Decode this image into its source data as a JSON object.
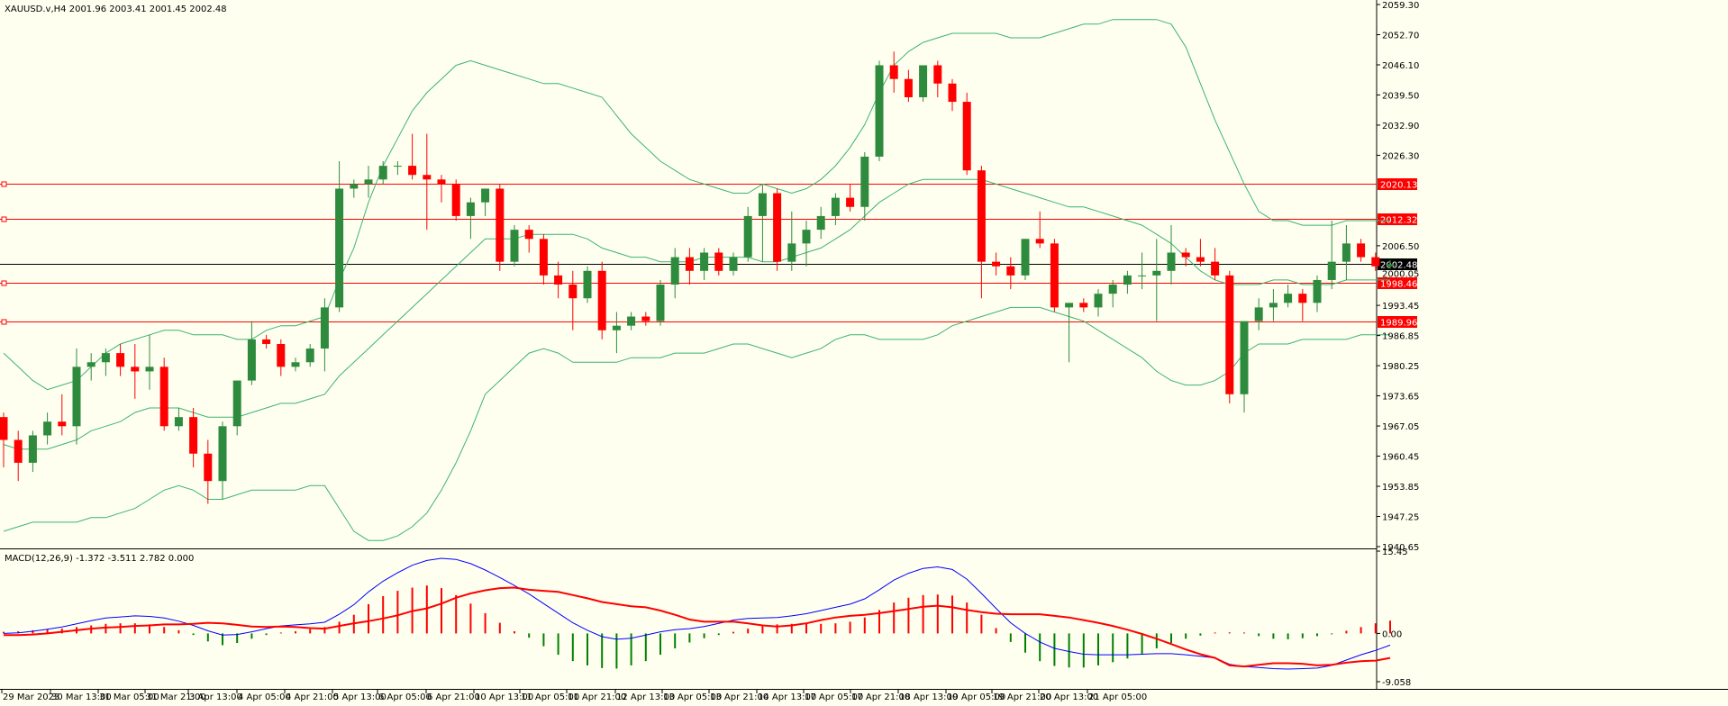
{
  "window": {
    "symbol_info": "XAUUSD.v,H4  2001.96 2003.41 2001.45 2002.48",
    "macd_info": "MACD(12,26,9) -1.372 -3.511 2.782 0.000"
  },
  "colors": {
    "background": "#fffff0",
    "bull": "#2e8b3e",
    "bear": "#ff0000",
    "bands": "#3cb371",
    "level_line": "#ff0000",
    "price_line": "#000000",
    "macd_line": "#0000ff",
    "signal_line": "#ff0000",
    "hist_pos": "#ff0000",
    "hist_neg": "#008000"
  },
  "chart_data": [
    {
      "type": "candlestick",
      "title": "XAUUSD.v,H4  2001.96 2003.41 2001.45 2002.48",
      "ylim": [
        1940.65,
        2059.3
      ],
      "y_ticks": [
        "2059.30",
        "2052.70",
        "2046.10",
        "2039.50",
        "2032.90",
        "2026.30",
        "2006.50",
        "1993.45",
        "1986.85",
        "1980.25",
        "1973.65",
        "1967.05",
        "1960.45",
        "1953.85",
        "1947.25",
        "1940.65"
      ],
      "x_ticks": [
        "29 Mar 2023",
        "30 Mar 13:00",
        "31 Mar 05:00",
        "31 Mar 21:00",
        "3 Apr 13:00",
        "4 Apr 05:00",
        "4 Apr 21:00",
        "5 Apr 13:00",
        "6 Apr 05:00",
        "6 Apr 21:00",
        "10 Apr 13:00",
        "11 Apr 05:00",
        "11 Apr 21:00",
        "12 Apr 13:00",
        "13 Apr 05:00",
        "13 Apr 21:00",
        "14 Apr 13:00",
        "17 Apr 05:00",
        "17 Apr 21:00",
        "18 Apr 13:00",
        "19 Apr 05:00",
        "19 Apr 21:00",
        "20 Apr 13:00",
        "21 Apr 05:00"
      ],
      "levels": [
        {
          "label": "2020.13",
          "value": 2020.13
        },
        {
          "label": "2012.32",
          "value": 2012.32
        },
        {
          "label": "1998.46",
          "value": 1998.46
        },
        {
          "label": "1989.96",
          "value": 1989.96
        }
      ],
      "current_price": {
        "label": "2002.48",
        "value": 2002.48
      },
      "extra_label": "2000.05",
      "candles": [
        [
          1969.0,
          1970.0,
          1958.0,
          1964.0
        ],
        [
          1964.0,
          1966.0,
          1955.0,
          1959.0
        ],
        [
          1959.0,
          1966.0,
          1957.0,
          1965.0
        ],
        [
          1965.0,
          1970.0,
          1963.0,
          1968.0
        ],
        [
          1968.0,
          1974.0,
          1965.0,
          1967.0
        ],
        [
          1967.0,
          1984.0,
          1963.0,
          1980.0
        ],
        [
          1980.0,
          1983.0,
          1977.0,
          1981.0
        ],
        [
          1981.0,
          1984.0,
          1978.0,
          1983.0
        ],
        [
          1983.0,
          1985.0,
          1978.0,
          1980.0
        ],
        [
          1980.0,
          1985.0,
          1973.0,
          1979.0
        ],
        [
          1979.0,
          1987.0,
          1975.0,
          1980.0
        ],
        [
          1980.0,
          1982.0,
          1966.0,
          1967.0
        ],
        [
          1967.0,
          1971.0,
          1966.0,
          1969.0
        ],
        [
          1969.0,
          1971.0,
          1958.0,
          1961.0
        ],
        [
          1961.0,
          1964.0,
          1950.0,
          1955.0
        ],
        [
          1955.0,
          1968.0,
          1951.0,
          1967.0
        ],
        [
          1967.0,
          1977.0,
          1965.0,
          1977.0
        ],
        [
          1977.0,
          1990.0,
          1976.0,
          1986.0
        ],
        [
          1986.0,
          1987.0,
          1984.0,
          1985.0
        ],
        [
          1985.0,
          1986.0,
          1978.0,
          1980.0
        ],
        [
          1980.0,
          1982.0,
          1979.0,
          1981.0
        ],
        [
          1981.0,
          1985.0,
          1980.0,
          1984.0
        ],
        [
          1984.0,
          1995.0,
          1979.0,
          1993.0
        ],
        [
          1993.0,
          2025.0,
          1992.0,
          2019.0
        ],
        [
          2019.0,
          2021.0,
          2017.0,
          2020.0
        ],
        [
          2020.0,
          2024.0,
          2017.0,
          2021.0
        ],
        [
          2021.0,
          2025.0,
          2020.0,
          2024.0
        ],
        [
          2024.0,
          2025.0,
          2022.0,
          2024.0
        ],
        [
          2024.0,
          2031.0,
          2021.0,
          2022.0
        ],
        [
          2022.0,
          2031.0,
          2010.0,
          2021.0
        ],
        [
          2021.0,
          2022.0,
          2016.0,
          2020.0
        ],
        [
          2020.0,
          2021.0,
          2012.0,
          2013.0
        ],
        [
          2013.0,
          2017.0,
          2008.0,
          2016.0
        ],
        [
          2016.0,
          2019.0,
          2013.0,
          2019.0
        ],
        [
          2019.0,
          2020.0,
          2001.0,
          2003.0
        ],
        [
          2003.0,
          2011.0,
          2002.0,
          2010.0
        ],
        [
          2010.0,
          2011.0,
          2005.0,
          2008.0
        ],
        [
          2008.0,
          2009.0,
          1998.0,
          2000.0
        ],
        [
          2000.0,
          2003.0,
          1995.0,
          1998.0
        ],
        [
          1998.0,
          2001.0,
          1988.0,
          1995.0
        ],
        [
          1995.0,
          2002.0,
          1994.0,
          2001.0
        ],
        [
          2001.0,
          2003.0,
          1986.0,
          1988.0
        ],
        [
          1988.0,
          1992.0,
          1983.0,
          1989.0
        ],
        [
          1989.0,
          1992.0,
          1988.0,
          1991.0
        ],
        [
          1991.0,
          1992.0,
          1989.0,
          1990.0
        ],
        [
          1990.0,
          1999.0,
          1989.0,
          1998.0
        ],
        [
          1998.0,
          2006.0,
          1995.0,
          2004.0
        ],
        [
          2004.0,
          2006.0,
          1998.0,
          2001.0
        ],
        [
          2001.0,
          2006.0,
          1999.0,
          2005.0
        ],
        [
          2005.0,
          2006.0,
          2000.0,
          2001.0
        ],
        [
          2001.0,
          2005.0,
          2000.0,
          2004.0
        ],
        [
          2004.0,
          2015.0,
          2003.0,
          2013.0
        ],
        [
          2013.0,
          2020.0,
          2003.0,
          2018.0
        ],
        [
          2018.0,
          2019.0,
          2001.0,
          2003.0
        ],
        [
          2003.0,
          2014.0,
          2001.0,
          2007.0
        ],
        [
          2007.0,
          2012.0,
          2002.0,
          2010.0
        ],
        [
          2010.0,
          2015.0,
          2008.0,
          2013.0
        ],
        [
          2013.0,
          2018.0,
          2011.0,
          2017.0
        ],
        [
          2017.0,
          2020.0,
          2014.0,
          2015.0
        ],
        [
          2015.0,
          2027.0,
          2012.0,
          2026.0
        ],
        [
          2026.0,
          2047.0,
          2025.0,
          2046.0
        ],
        [
          2046.0,
          2049.0,
          2040.0,
          2043.0
        ],
        [
          2043.0,
          2045.0,
          2038.0,
          2039.0
        ],
        [
          2039.0,
          2046.0,
          2038.0,
          2046.0
        ],
        [
          2046.0,
          2047.0,
          2039.0,
          2042.0
        ],
        [
          2042.0,
          2043.0,
          2036.0,
          2038.0
        ],
        [
          2038.0,
          2040.0,
          2022.0,
          2023.0
        ],
        [
          2023.0,
          2024.0,
          1995.0,
          2003.0
        ],
        [
          2003.0,
          2005.0,
          2000.0,
          2002.0
        ],
        [
          2002.0,
          2004.0,
          1997.0,
          2000.0
        ],
        [
          2000.0,
          2008.0,
          1999.0,
          2008.0
        ],
        [
          2008.0,
          2014.0,
          2006.0,
          2007.0
        ],
        [
          2007.0,
          2008.0,
          1992.0,
          1993.0
        ],
        [
          1993.0,
          1994.0,
          1981.0,
          1994.0
        ],
        [
          1994.0,
          1995.0,
          1992.0,
          1993.0
        ],
        [
          1993.0,
          1997.0,
          1991.0,
          1996.0
        ],
        [
          1996.0,
          1999.0,
          1993.0,
          1998.0
        ],
        [
          1998.0,
          2001.0,
          1996.0,
          2000.0
        ],
        [
          2000.0,
          2005.0,
          1997.0,
          2000.0
        ],
        [
          2000.0,
          2008.0,
          1990.0,
          2001.0
        ],
        [
          2001.0,
          2011.0,
          1998.0,
          2005.0
        ],
        [
          2005.0,
          2006.0,
          2002.0,
          2004.0
        ],
        [
          2004.0,
          2008.0,
          2002.0,
          2003.0
        ],
        [
          2003.0,
          2006.0,
          1999.0,
          2000.0
        ],
        [
          2000.0,
          2001.0,
          1972.0,
          1974.0
        ],
        [
          1974.0,
          1990.0,
          1970.0,
          1990.0
        ],
        [
          1990.0,
          1995.0,
          1988.0,
          1993.0
        ],
        [
          1993.0,
          1997.0,
          1990.0,
          1994.0
        ],
        [
          1994.0,
          1998.0,
          1993.0,
          1996.0
        ],
        [
          1996.0,
          1997.0,
          1990.0,
          1994.0
        ],
        [
          1994.0,
          2000.0,
          1992.0,
          1999.0
        ],
        [
          1999.0,
          2012.0,
          1997.0,
          2003.0
        ],
        [
          2003.0,
          2011.0,
          1999.0,
          2007.0
        ],
        [
          2007.0,
          2008.0,
          2003.0,
          2004.0
        ],
        [
          2004.0,
          2005.0,
          2001.0,
          2002.0
        ],
        [
          2002.0,
          2003.41,
          2001.45,
          2002.48
        ]
      ],
      "bands_upper": [
        1983,
        1980,
        1977,
        1975,
        1976,
        1977,
        1980,
        1983,
        1985,
        1986,
        1987,
        1988,
        1988,
        1987,
        1987,
        1987,
        1986,
        1986,
        1988,
        1989,
        1989,
        1990,
        1991,
        1999,
        2006,
        2016,
        2024,
        2030,
        2036,
        2040,
        2043,
        2046,
        2047,
        2046,
        2045,
        2044,
        2043,
        2042,
        2042,
        2041,
        2040,
        2039,
        2035,
        2031,
        2028,
        2025,
        2023,
        2021,
        2020,
        2019,
        2018,
        2018,
        2020,
        2019,
        2018,
        2019,
        2021,
        2024,
        2028,
        2033,
        2040,
        2046,
        2049,
        2051,
        2052,
        2053,
        2053,
        2053,
        2053,
        2052,
        2052,
        2052,
        2053,
        2054,
        2055,
        2055,
        2056,
        2056,
        2056,
        2056,
        2055,
        2050,
        2042,
        2034,
        2027,
        2020,
        2014,
        2012,
        2012,
        2011,
        2011,
        2011,
        2012,
        2012,
        2012,
        2012
      ],
      "bands_middle": [
        1963,
        1962,
        1962,
        1962,
        1963,
        1964,
        1966,
        1967,
        1968,
        1970,
        1971,
        1971,
        1971,
        1970,
        1969,
        1969,
        1969,
        1970,
        1971,
        1972,
        1972,
        1973,
        1974,
        1978,
        1981,
        1984,
        1987,
        1990,
        1993,
        1996,
        1999,
        2002,
        2005,
        2008,
        2008,
        2008,
        2009,
        2009,
        2009,
        2009,
        2008,
        2006,
        2005,
        2004,
        2004,
        2003,
        2003,
        2003,
        2004,
        2004,
        2004,
        2004,
        2003,
        2003,
        2004,
        2005,
        2006,
        2008,
        2010,
        2013,
        2016,
        2018,
        2020,
        2021,
        2021,
        2021,
        2021,
        2021,
        2020,
        2019,
        2018,
        2017,
        2016,
        2015,
        2015,
        2014,
        2013,
        2012,
        2011,
        2009,
        2007,
        2004,
        2001,
        1999,
        1998,
        1998,
        1998,
        1999,
        1999,
        1998,
        1998,
        1998,
        1999,
        1999,
        1999,
        1999
      ],
      "bands_lower": [
        1944,
        1945,
        1946,
        1946,
        1946,
        1946,
        1947,
        1947,
        1948,
        1949,
        1951,
        1953,
        1954,
        1953,
        1951,
        1951,
        1952,
        1953,
        1953,
        1953,
        1953,
        1954,
        1954,
        1949,
        1944,
        1942,
        1942,
        1943,
        1945,
        1948,
        1953,
        1959,
        1966,
        1974,
        1977,
        1980,
        1983,
        1984,
        1983,
        1981,
        1981,
        1981,
        1981,
        1982,
        1982,
        1982,
        1983,
        1983,
        1983,
        1984,
        1985,
        1985,
        1984,
        1983,
        1982,
        1983,
        1984,
        1986,
        1987,
        1987,
        1986,
        1986,
        1986,
        1986,
        1987,
        1989,
        1990,
        1991,
        1992,
        1993,
        1993,
        1993,
        1992,
        1991,
        1990,
        1988,
        1986,
        1984,
        1982,
        1979,
        1977,
        1976,
        1976,
        1977,
        1979,
        1983,
        1985,
        1985,
        1985,
        1986,
        1986,
        1986,
        1986,
        1987,
        1987,
        1987
      ]
    },
    {
      "type": "macd",
      "title": "MACD(12,26,9) -1.372 -3.511 2.782 0.000",
      "ylim": [
        -9.058,
        15.45
      ],
      "y_ticks": [
        "15.45",
        "0.00",
        "-9.058"
      ],
      "histogram": [
        0.3,
        0.4,
        0.6,
        0.8,
        0.9,
        1.2,
        1.5,
        1.8,
        1.9,
        1.9,
        1.7,
        1.2,
        0.6,
        -0.3,
        -1.5,
        -2.2,
        -1.8,
        -1.0,
        -0.3,
        0.1,
        0.4,
        0.8,
        1.2,
        2.2,
        3.5,
        5.5,
        7.0,
        8.0,
        8.6,
        9.0,
        8.5,
        7.2,
        5.6,
        3.8,
        2.0,
        0.4,
        -0.8,
        -2.4,
        -4.0,
        -5.2,
        -6.0,
        -6.5,
        -6.6,
        -6.0,
        -5.2,
        -4.0,
        -2.8,
        -1.7,
        -0.9,
        -0.3,
        0.3,
        0.9,
        1.4,
        1.7,
        1.8,
        1.8,
        1.8,
        1.9,
        2.2,
        3.0,
        4.4,
        5.8,
        6.7,
        7.2,
        7.3,
        7.1,
        5.8,
        3.5,
        1.0,
        -1.6,
        -3.6,
        -5.2,
        -6.1,
        -6.4,
        -6.4,
        -6.0,
        -5.4,
        -4.7,
        -3.8,
        -2.8,
        -1.8,
        -1.0,
        -0.4,
        0.0,
        0.2,
        0.0,
        -0.5,
        -1.0,
        -1.1,
        -0.9,
        -0.5,
        -0.1,
        0.5,
        1.2,
        1.9,
        2.4
      ],
      "macd": [
        0.0,
        0.1,
        0.4,
        0.8,
        1.2,
        1.8,
        2.4,
        2.9,
        3.1,
        3.3,
        3.2,
        2.9,
        2.3,
        1.5,
        0.5,
        -0.3,
        -0.2,
        0.3,
        0.9,
        1.4,
        1.6,
        1.8,
        2.1,
        3.6,
        5.4,
        7.8,
        9.8,
        11.4,
        12.8,
        13.7,
        14.1,
        13.9,
        13.1,
        11.9,
        10.5,
        9.0,
        7.4,
        5.6,
        3.8,
        2.0,
        0.6,
        -0.6,
        -1.1,
        -0.9,
        -0.3,
        0.3,
        0.7,
        0.9,
        1.3,
        1.9,
        2.5,
        2.8,
        2.9,
        3.0,
        3.3,
        3.7,
        4.3,
        4.9,
        5.5,
        6.5,
        8.2,
        10.0,
        11.3,
        12.2,
        12.5,
        12.0,
        10.2,
        7.5,
        4.7,
        2.0,
        0.0,
        -1.6,
        -2.8,
        -3.4,
        -3.9,
        -4.0,
        -4.0,
        -4.0,
        -3.9,
        -3.8,
        -3.8,
        -4.0,
        -4.3,
        -4.6,
        -5.8,
        -6.2,
        -6.4,
        -6.6,
        -6.7,
        -6.6,
        -6.5,
        -6.0,
        -5.0,
        -4.0,
        -3.2,
        -2.2
      ],
      "signal": [
        -0.3,
        -0.3,
        -0.2,
        0.0,
        0.3,
        0.6,
        0.9,
        1.1,
        1.2,
        1.4,
        1.5,
        1.7,
        1.7,
        1.8,
        2.0,
        1.9,
        1.6,
        1.3,
        1.2,
        1.3,
        1.2,
        1.0,
        0.9,
        1.4,
        1.9,
        2.3,
        2.8,
        3.4,
        4.2,
        4.7,
        5.6,
        6.7,
        7.5,
        8.1,
        8.5,
        8.6,
        8.2,
        8.0,
        7.8,
        7.2,
        6.6,
        5.9,
        5.5,
        5.1,
        4.9,
        4.3,
        3.5,
        2.6,
        2.2,
        2.2,
        2.2,
        1.9,
        1.5,
        1.3,
        1.5,
        1.9,
        2.5,
        3.0,
        3.3,
        3.5,
        3.8,
        4.2,
        4.6,
        5.0,
        5.2,
        4.9,
        4.4,
        4.0,
        3.7,
        3.6,
        3.6,
        3.6,
        3.3,
        3.0,
        2.5,
        2.0,
        1.4,
        0.7,
        -0.1,
        -1.0,
        -2.0,
        -3.0,
        -3.9,
        -4.6,
        -6.0,
        -6.2,
        -5.9,
        -5.6,
        -5.6,
        -5.7,
        -6.0,
        -5.9,
        -5.5,
        -5.2,
        -5.1,
        -4.6
      ]
    }
  ]
}
